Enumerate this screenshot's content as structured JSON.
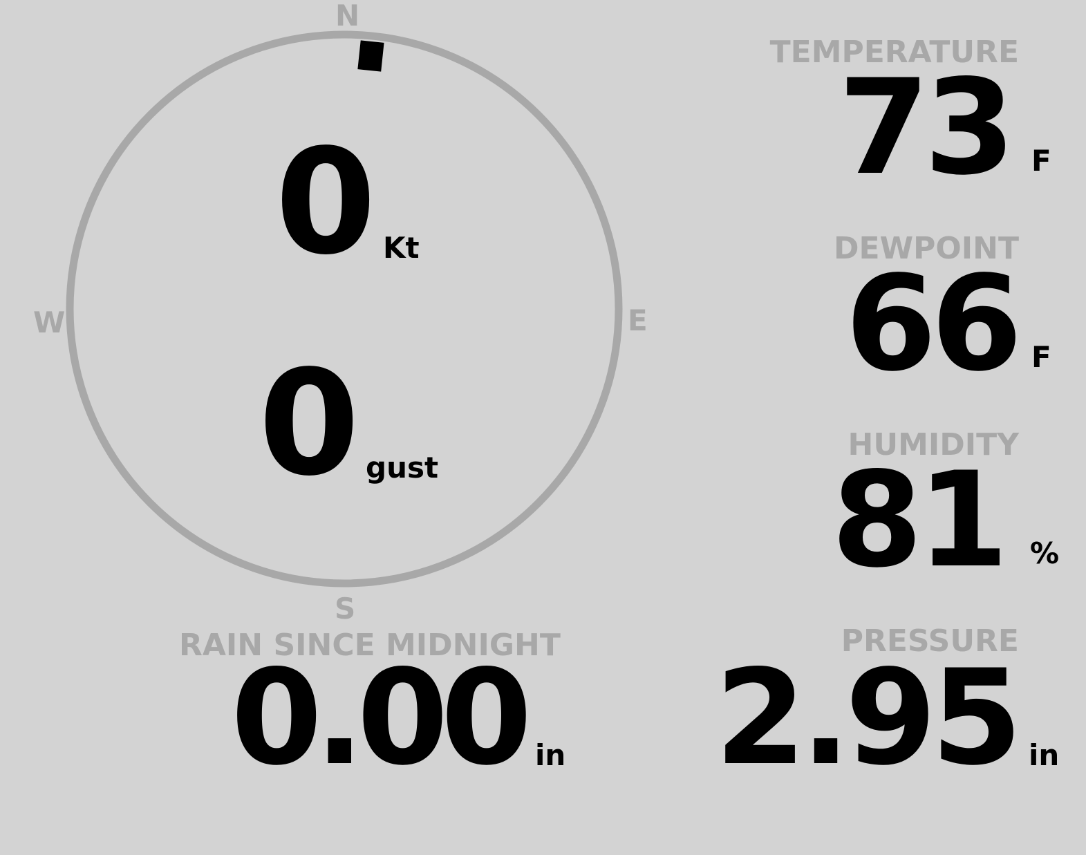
{
  "wind": {
    "speed": "0",
    "speed_unit": "Kt",
    "gust": "0",
    "gust_unit": "gust",
    "direction_deg": 6,
    "cardinals": {
      "n": "N",
      "e": "E",
      "s": "S",
      "w": "W"
    }
  },
  "rain": {
    "label": "RAIN SINCE MIDNIGHT",
    "value": "0.00",
    "unit": "in"
  },
  "temperature": {
    "label": "TEMPERATURE",
    "value": "73",
    "unit": "F"
  },
  "dewpoint": {
    "label": "DEWPOINT",
    "value": "66",
    "unit": "F"
  },
  "humidity": {
    "label": "HUMIDITY",
    "value": "81",
    "unit": "%"
  },
  "pressure": {
    "label": "PRESSURE",
    "value": "2.95",
    "unit": "in"
  },
  "colors": {
    "background": "#d3d3d3",
    "label": "#a8a8a8",
    "value": "#000000"
  }
}
